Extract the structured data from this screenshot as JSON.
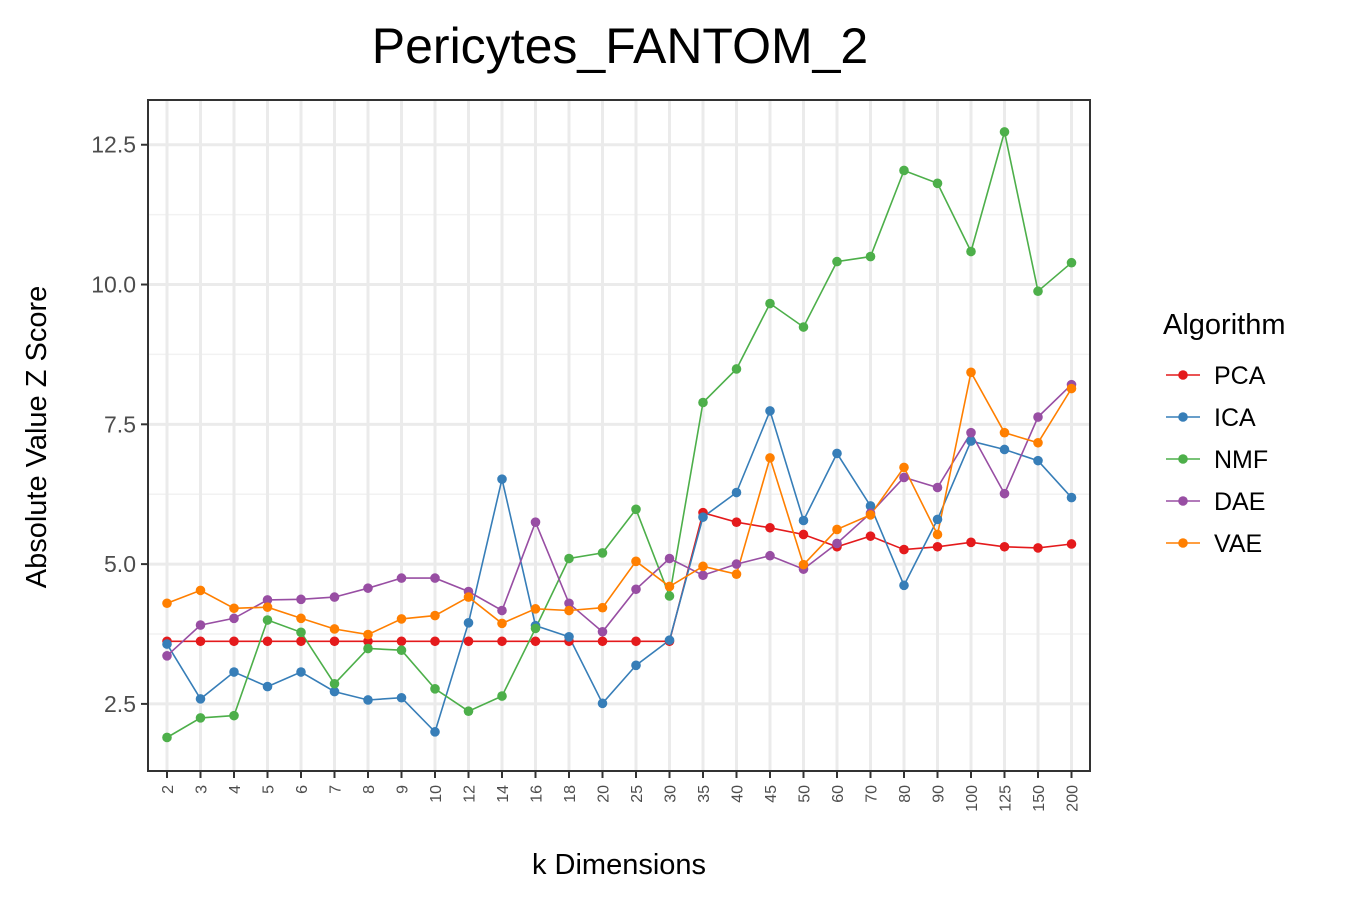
{
  "chart_data": {
    "type": "line",
    "title": "Pericytes_FANTOM_2",
    "xlabel": "k Dimensions",
    "ylabel": "Absolute Value Z Score",
    "categories": [
      "2",
      "3",
      "4",
      "5",
      "6",
      "7",
      "8",
      "9",
      "10",
      "12",
      "14",
      "16",
      "18",
      "20",
      "25",
      "30",
      "35",
      "40",
      "45",
      "50",
      "60",
      "70",
      "80",
      "90",
      "100",
      "125",
      "150",
      "200"
    ],
    "y_ticks": [
      "2.5",
      "5.0",
      "7.5",
      "10.0",
      "12.5"
    ],
    "ylim": [
      1.3,
      13.3
    ],
    "grid": true,
    "legend_title": "Algorithm",
    "legend_position": "right",
    "series": [
      {
        "name": "PCA",
        "color": "#e41a1c",
        "values": [
          3.62,
          3.62,
          3.62,
          3.62,
          3.62,
          3.62,
          3.62,
          3.62,
          3.62,
          3.62,
          3.62,
          3.62,
          3.62,
          3.62,
          3.62,
          3.62,
          5.92,
          5.75,
          5.65,
          5.53,
          5.31,
          5.5,
          5.26,
          5.31,
          5.39,
          5.31,
          5.29,
          5.36
        ]
      },
      {
        "name": "ICA",
        "color": "#377eb8",
        "values": [
          3.57,
          2.59,
          3.07,
          2.81,
          3.07,
          2.72,
          2.57,
          2.61,
          2.0,
          3.95,
          6.52,
          3.9,
          3.7,
          2.51,
          3.19,
          3.64,
          5.84,
          6.28,
          7.74,
          5.78,
          6.98,
          6.04,
          4.62,
          5.8,
          7.2,
          7.05,
          6.85,
          6.19
        ]
      },
      {
        "name": "NMF",
        "color": "#4daf4a",
        "values": [
          1.9,
          2.25,
          2.29,
          4.0,
          3.78,
          2.86,
          3.49,
          3.46,
          2.77,
          2.37,
          2.64,
          3.85,
          5.1,
          5.2,
          5.98,
          4.43,
          7.89,
          8.49,
          9.66,
          9.24,
          10.41,
          10.5,
          12.04,
          11.81,
          10.59,
          12.73,
          9.88,
          10.39
        ]
      },
      {
        "name": "DAE",
        "color": "#984ea3",
        "values": [
          3.36,
          3.91,
          4.03,
          4.36,
          4.37,
          4.41,
          4.57,
          4.75,
          4.75,
          4.51,
          4.17,
          5.75,
          4.3,
          3.79,
          4.55,
          5.1,
          4.8,
          5.0,
          5.15,
          4.91,
          5.37,
          5.91,
          6.55,
          6.37,
          7.35,
          6.26,
          7.63,
          8.21
        ]
      },
      {
        "name": "VAE",
        "color": "#ff7f00",
        "values": [
          4.3,
          4.53,
          4.21,
          4.23,
          4.03,
          3.84,
          3.74,
          4.02,
          4.08,
          4.41,
          3.94,
          4.2,
          4.17,
          4.22,
          5.05,
          4.6,
          4.96,
          4.82,
          6.9,
          4.99,
          5.62,
          5.88,
          6.73,
          5.53,
          8.43,
          7.35,
          7.17,
          8.14
        ]
      }
    ]
  }
}
